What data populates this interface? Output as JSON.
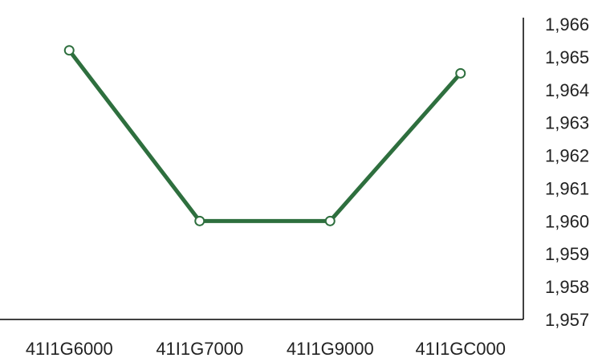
{
  "chart_data": {
    "type": "line",
    "title": "",
    "xlabel": "",
    "ylabel": "",
    "categories": [
      "41I1G6000",
      "41I1G7000",
      "41I1G9000",
      "41I1GC000"
    ],
    "series": [
      {
        "values": [
          1965.2,
          1960.0,
          1960.0,
          1964.5
        ]
      }
    ],
    "ylim": [
      1957,
      1966
    ],
    "y_ticks": [
      "1,957",
      "1,958",
      "1,959",
      "1,960",
      "1,961",
      "1,962",
      "1,963",
      "1,964",
      "1,965",
      "1,966"
    ],
    "y_axis_position": "right",
    "grid": false,
    "legend": "none",
    "colors": {
      "line": "#2e6f3e",
      "marker_fill": "#ffffff",
      "axis": "#000000"
    }
  }
}
